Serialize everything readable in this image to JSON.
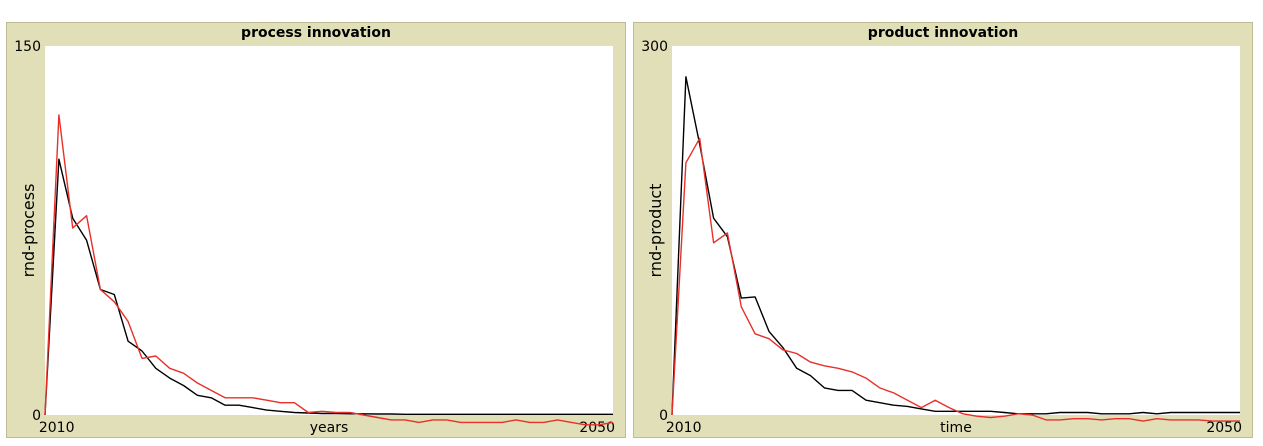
{
  "chart_data": [
    {
      "type": "line",
      "title": "process innovation",
      "xlabel": "years",
      "ylabel": "rnd-process",
      "xlim": [
        2009,
        2050
      ],
      "ylim": [
        0,
        150
      ],
      "x_ticks": [
        2010,
        2050
      ],
      "y_ticks": [
        0,
        150
      ],
      "x": [
        2009,
        2010,
        2011,
        2012,
        2013,
        2014,
        2015,
        2016,
        2017,
        2018,
        2019,
        2020,
        2021,
        2022,
        2023,
        2024,
        2025,
        2026,
        2027,
        2028,
        2029,
        2030,
        2031,
        2032,
        2033,
        2034,
        2035,
        2036,
        2037,
        2038,
        2039,
        2040,
        2041,
        2042,
        2043,
        2044,
        2045,
        2046,
        2047,
        2048,
        2049,
        2050
      ],
      "series": [
        {
          "color": "#000000",
          "values": [
            0,
            104,
            80,
            71,
            51,
            49,
            30,
            26,
            19,
            15,
            12,
            8,
            7,
            4,
            4,
            3,
            2,
            1.5,
            1,
            0.8,
            0.6,
            0.6,
            0.5,
            0.5,
            0.4,
            0.4,
            0.3,
            0.3,
            0.3,
            0.3,
            0.3,
            0.3,
            0.3,
            0.3,
            0.3,
            0.3,
            0.3,
            0.3,
            0.3,
            0.3,
            0.3,
            0.3
          ]
        },
        {
          "color": "#e8302a",
          "values": [
            0,
            122,
            76,
            81,
            51,
            46,
            38,
            23,
            24,
            19,
            17,
            13,
            10,
            7,
            7,
            7,
            6,
            5,
            5,
            1,
            1.5,
            1,
            1,
            0,
            -1,
            -2,
            -2,
            -3,
            -2,
            -2,
            -3,
            -3,
            -3,
            -3,
            -2,
            -3,
            -3,
            -2,
            -3,
            -4,
            -4,
            -3
          ]
        }
      ]
    },
    {
      "type": "line",
      "title": "product innovation",
      "xlabel": "time",
      "ylabel": "rnd-product",
      "xlim": [
        2009,
        2050
      ],
      "ylim": [
        0,
        300
      ],
      "x_ticks": [
        2010,
        2050
      ],
      "y_ticks": [
        0,
        300
      ],
      "x": [
        2009,
        2010,
        2011,
        2012,
        2013,
        2014,
        2015,
        2016,
        2017,
        2018,
        2019,
        2020,
        2021,
        2022,
        2023,
        2024,
        2025,
        2026,
        2027,
        2028,
        2029,
        2030,
        2031,
        2032,
        2033,
        2034,
        2035,
        2036,
        2037,
        2038,
        2039,
        2040,
        2041,
        2042,
        2043,
        2044,
        2045,
        2046,
        2047,
        2048,
        2049,
        2050
      ],
      "series": [
        {
          "color": "#000000",
          "values": [
            0,
            275,
            220,
            160,
            145,
            95,
            96,
            68,
            55,
            38,
            32,
            22,
            20,
            20,
            12,
            10,
            8,
            7,
            5,
            3,
            3,
            3,
            3,
            3,
            2,
            1,
            1,
            1,
            2,
            2,
            2,
            1,
            1,
            1,
            2,
            1,
            2,
            2,
            2,
            2,
            2,
            2
          ]
        },
        {
          "color": "#e8302a",
          "values": [
            0,
            205,
            225,
            140,
            148,
            88,
            66,
            62,
            53,
            50,
            43,
            40,
            38,
            35,
            30,
            22,
            18,
            12,
            6,
            12,
            6,
            1,
            -1,
            -2,
            -1,
            1,
            0,
            -4,
            -4,
            -3,
            -3,
            -4,
            -3,
            -3,
            -5,
            -3,
            -4,
            -4,
            -4,
            -5,
            -5,
            -5
          ]
        }
      ]
    }
  ]
}
